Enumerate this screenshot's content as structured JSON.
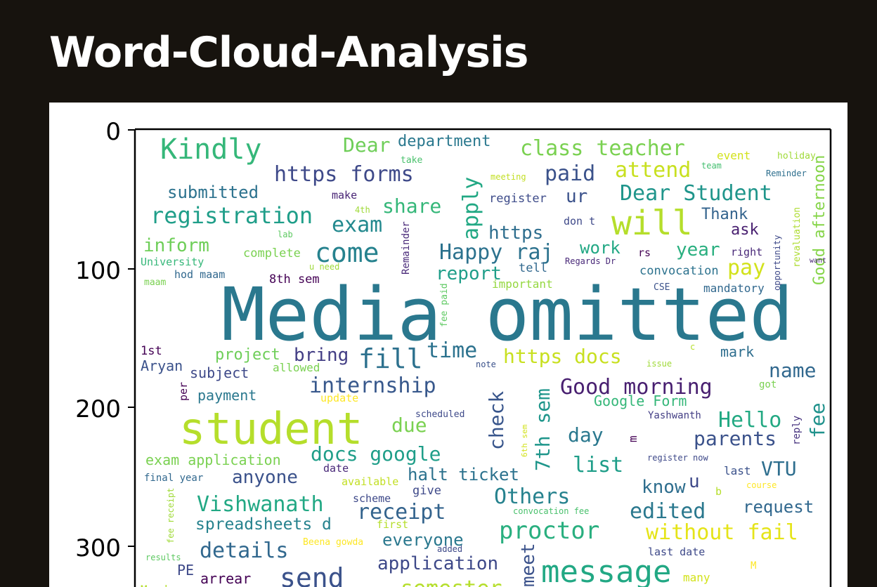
{
  "page": {
    "title": "Word-Cloud-Analysis"
  },
  "figure": {
    "y_axis_ticks": [
      "0",
      "100",
      "200",
      "300"
    ]
  },
  "words": [
    {
      "text": "Media omitted",
      "color": "#2a788e"
    },
    {
      "text": "student",
      "color": "#b5de2b"
    },
    {
      "text": "will",
      "color": "#b5de2b"
    },
    {
      "text": "Kindly",
      "color": "#35b779"
    },
    {
      "text": "message",
      "color": "#22a884"
    },
    {
      "text": "come",
      "color": "#26828e"
    },
    {
      "text": "fill",
      "color": "#2d718e"
    },
    {
      "text": "send",
      "color": "#3b528b"
    },
    {
      "text": "Dear",
      "color": "#6ece58"
    },
    {
      "text": "department",
      "color": "#2a788e"
    },
    {
      "text": "class teacher",
      "color": "#7ad151"
    },
    {
      "text": "event",
      "color": "#d2e21b"
    },
    {
      "text": "holiday",
      "color": "#a0da39"
    },
    {
      "text": "take",
      "color": "#4ac16d"
    },
    {
      "text": "team",
      "color": "#44bf70"
    },
    {
      "text": "https forms",
      "color": "#3e4989"
    },
    {
      "text": "paid",
      "color": "#3b528b"
    },
    {
      "text": "attend",
      "color": "#c8e020"
    },
    {
      "text": "meeting",
      "color": "#c2df23"
    },
    {
      "text": "Reminder",
      "color": "#2e6f8e"
    },
    {
      "text": "Good afternoon",
      "color": "#86d549"
    },
    {
      "text": "submitted",
      "color": "#2c728e"
    },
    {
      "text": "make",
      "color": "#482475"
    },
    {
      "text": "register",
      "color": "#3e4c8a"
    },
    {
      "text": "ur",
      "color": "#3b528b"
    },
    {
      "text": "Dear Student",
      "color": "#1f958b"
    },
    {
      "text": "apply",
      "color": "#22a884"
    },
    {
      "text": "share",
      "color": "#35b779"
    },
    {
      "text": "registration",
      "color": "#1f9e89"
    },
    {
      "text": "4th",
      "color": "#a0da39"
    },
    {
      "text": "exam",
      "color": "#23898e"
    },
    {
      "text": "Remainder",
      "color": "#482878"
    },
    {
      "text": "https",
      "color": "#2e6e8e"
    },
    {
      "text": "don t",
      "color": "#3e4989"
    },
    {
      "text": "Thank",
      "color": "#33638d"
    },
    {
      "text": "ask",
      "color": "#481f70"
    },
    {
      "text": "revaluation",
      "color": "#addc30"
    },
    {
      "text": "lab",
      "color": "#5ec962"
    },
    {
      "text": "inform",
      "color": "#6ece58"
    },
    {
      "text": "complete",
      "color": "#7ad151"
    },
    {
      "text": "University",
      "color": "#35b779"
    },
    {
      "text": "u need",
      "color": "#9fda3a"
    },
    {
      "text": "Happy raj",
      "color": "#2c728e"
    },
    {
      "text": "work",
      "color": "#22a884"
    },
    {
      "text": "rs",
      "color": "#440154"
    },
    {
      "text": "year",
      "color": "#29af7f"
    },
    {
      "text": "right",
      "color": "#482878"
    },
    {
      "text": "opportunity",
      "color": "#3e4989"
    },
    {
      "text": "want",
      "color": "#482475"
    },
    {
      "text": "maam",
      "color": "#7ad151"
    },
    {
      "text": "hod maam",
      "color": "#31688e"
    },
    {
      "text": "8th sem",
      "color": "#440154"
    },
    {
      "text": "report",
      "color": "#1f9e89"
    },
    {
      "text": "tell",
      "color": "#31688e"
    },
    {
      "text": "Regards Dr",
      "color": "#482878"
    },
    {
      "text": "convocation",
      "color": "#2c728e"
    },
    {
      "text": "pay",
      "color": "#d2e21b"
    },
    {
      "text": "important",
      "color": "#95d840"
    },
    {
      "text": "CSE",
      "color": "#3b528b"
    },
    {
      "text": "mandatory",
      "color": "#31688e"
    },
    {
      "text": "fee paid",
      "color": "#5ec962"
    },
    {
      "text": "1st",
      "color": "#440154"
    },
    {
      "text": "Aryan",
      "color": "#3b528b"
    },
    {
      "text": "project",
      "color": "#6ece58"
    },
    {
      "text": "bring",
      "color": "#433e85"
    },
    {
      "text": "time",
      "color": "#2c728e"
    },
    {
      "text": "https docs",
      "color": "#c8e020"
    },
    {
      "text": "c",
      "color": "#b5de2b"
    },
    {
      "text": "mark",
      "color": "#2e6e8e"
    },
    {
      "text": "subject",
      "color": "#3e4989"
    },
    {
      "text": "allowed",
      "color": "#7ad151"
    },
    {
      "text": "note",
      "color": "#3b528b"
    },
    {
      "text": "issue",
      "color": "#a0da39"
    },
    {
      "text": "name",
      "color": "#31688e"
    },
    {
      "text": "internship",
      "color": "#38588c"
    },
    {
      "text": "check",
      "color": "#39568c"
    },
    {
      "text": "7th sem",
      "color": "#1f968b"
    },
    {
      "text": "Good morning",
      "color": "#481f70"
    },
    {
      "text": "got",
      "color": "#7ad151"
    },
    {
      "text": "per",
      "color": "#440154"
    },
    {
      "text": "payment",
      "color": "#2a788e"
    },
    {
      "text": "update",
      "color": "#fde725"
    },
    {
      "text": "Google Form",
      "color": "#35b779"
    },
    {
      "text": "fee",
      "color": "#20928c"
    },
    {
      "text": "Hello",
      "color": "#23a983"
    },
    {
      "text": "scheduled",
      "color": "#3e4989"
    },
    {
      "text": "Yashwanth",
      "color": "#433e85"
    },
    {
      "text": "due",
      "color": "#7ad151"
    },
    {
      "text": "6th sem",
      "color": "#d2e21b"
    },
    {
      "text": "day",
      "color": "#2a788e"
    },
    {
      "text": "parents",
      "color": "#3b528b"
    },
    {
      "text": "reply",
      "color": "#46327e"
    },
    {
      "text": "docs google",
      "color": "#1f9e89"
    },
    {
      "text": "list",
      "color": "#1f9e89"
    },
    {
      "text": "m",
      "color": "#440154"
    },
    {
      "text": "register now",
      "color": "#3e4989"
    },
    {
      "text": "exam application",
      "color": "#7ad151"
    },
    {
      "text": "date",
      "color": "#482878"
    },
    {
      "text": "halt ticket",
      "color": "#2c728e"
    },
    {
      "text": "last",
      "color": "#3b528b"
    },
    {
      "text": "VTU",
      "color": "#2e6e8e"
    },
    {
      "text": "final year",
      "color": "#31688e"
    },
    {
      "text": "anyone",
      "color": "#3b528b"
    },
    {
      "text": "available",
      "color": "#c2df23"
    },
    {
      "text": "give",
      "color": "#3e4989"
    },
    {
      "text": "know",
      "color": "#2e6e8e"
    },
    {
      "text": "u",
      "color": "#3e4989"
    },
    {
      "text": "b",
      "color": "#b5de2b"
    },
    {
      "text": "course",
      "color": "#fde725"
    },
    {
      "text": "Vishwanath",
      "color": "#22a884"
    },
    {
      "text": "scheme",
      "color": "#3e4989"
    },
    {
      "text": "receipt",
      "color": "#33638d"
    },
    {
      "text": "Others",
      "color": "#26828e"
    },
    {
      "text": "edited",
      "color": "#2a788e"
    },
    {
      "text": "request",
      "color": "#31688e"
    },
    {
      "text": "fee receipt",
      "color": "#a0da39"
    },
    {
      "text": "spreadsheets d",
      "color": "#26828e"
    },
    {
      "text": "first",
      "color": "#b5de2b"
    },
    {
      "text": "convocation fee",
      "color": "#4ac16d"
    },
    {
      "text": "proctor",
      "color": "#29af7f"
    },
    {
      "text": "without fail",
      "color": "#e5e419"
    },
    {
      "text": "details",
      "color": "#31688e"
    },
    {
      "text": "Beena gowda",
      "color": "#fde725"
    },
    {
      "text": "everyone",
      "color": "#2a788e"
    },
    {
      "text": "added",
      "color": "#3e4989"
    },
    {
      "text": "last date",
      "color": "#3e4989"
    },
    {
      "text": "results",
      "color": "#5ec962"
    },
    {
      "text": "PE",
      "color": "#3e4989"
    },
    {
      "text": "arrear",
      "color": "#440154"
    },
    {
      "text": "application",
      "color": "#3e4989"
    },
    {
      "text": "meet",
      "color": "#3b528b"
    },
    {
      "text": "many",
      "color": "#d2e21b"
    },
    {
      "text": "M",
      "color": "#fde725"
    },
    {
      "text": "semester",
      "color": "#b5de2b"
    },
    {
      "text": "Monday",
      "color": "#b5de2b"
    }
  ]
}
